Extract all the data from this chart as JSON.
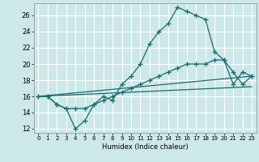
{
  "xlabel": "Humidex (Indice chaleur)",
  "bg_color": "#cce8e8",
  "grid_color": "#ffffff",
  "line_color": "#1a6b6b",
  "xlim": [
    -0.5,
    23.5
  ],
  "ylim": [
    11.5,
    27.5
  ],
  "xticks": [
    0,
    1,
    2,
    3,
    4,
    5,
    6,
    7,
    8,
    9,
    10,
    11,
    12,
    13,
    14,
    15,
    16,
    17,
    18,
    19,
    20,
    21,
    22,
    23
  ],
  "yticks": [
    12,
    14,
    16,
    18,
    20,
    22,
    24,
    26
  ],
  "line1_x": [
    0,
    1,
    2,
    3,
    4,
    5,
    6,
    7,
    8,
    9,
    10,
    11,
    12,
    13,
    14,
    15,
    16,
    17,
    18,
    19,
    20,
    21,
    22,
    23
  ],
  "line1_y": [
    16,
    16,
    15,
    14.5,
    12,
    13,
    15,
    16,
    15.5,
    17.5,
    18.5,
    20,
    22.5,
    24,
    25,
    27,
    26.5,
    26,
    25.5,
    21.5,
    20.5,
    19,
    17.5,
    18.5
  ],
  "line2_x": [
    0,
    1,
    2,
    3,
    4,
    5,
    6,
    7,
    8,
    9,
    10,
    11,
    12,
    13,
    14,
    15,
    16,
    17,
    18,
    19,
    20,
    21,
    22,
    23
  ],
  "line2_y": [
    16,
    16,
    15,
    14.5,
    14.5,
    14.5,
    15,
    15.5,
    16,
    16.5,
    17,
    17.5,
    18,
    18.5,
    19,
    19.5,
    20,
    20,
    20,
    20.5,
    20.5,
    17.5,
    19,
    18.5
  ],
  "line3_x": [
    0,
    23
  ],
  "line3_y": [
    16,
    18.5
  ],
  "line4_x": [
    0,
    23
  ],
  "line4_y": [
    16,
    17.2
  ]
}
